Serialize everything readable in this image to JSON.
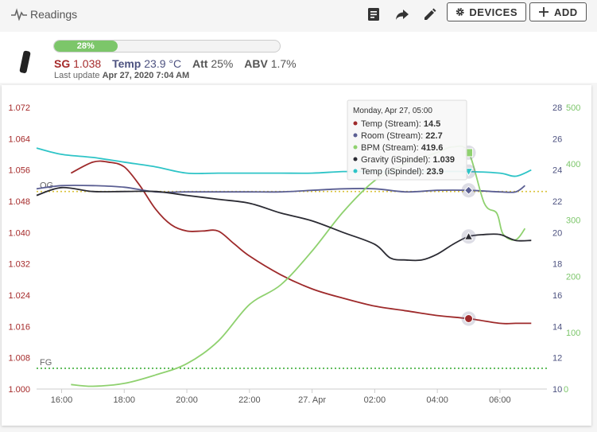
{
  "app": {
    "title": "Readings"
  },
  "toolbar": {
    "notes_icon": "notes-icon",
    "share_icon": "share-icon",
    "edit_icon": "edit-icon",
    "devices_label": "DEVICES",
    "add_label": "ADD"
  },
  "summary": {
    "progress_percent": 28,
    "progress_label": "28%",
    "sg_label": "SG",
    "sg_value": "1.038",
    "temp_label": "Temp",
    "temp_value": "23.9 °C",
    "att_label": "Att",
    "att_value": "25%",
    "abv_label": "ABV",
    "abv_value": "1.7%",
    "last_update_label": "Last update",
    "last_update_value": "Apr 27, 2020 7:04 AM"
  },
  "colors": {
    "sg": "#a52a2a",
    "temp_label": "#4d5280",
    "progress": "#7cc66a",
    "temp_stream": "#9e2a2b",
    "room": "#5b5f93",
    "bpm": "#8fd16f",
    "gravity": "#2b2b33",
    "temp_ispindel": "#2ec4c7"
  },
  "chart_data": {
    "type": "line",
    "x_tick_labels": [
      "16:00",
      "18:00",
      "20:00",
      "22:00",
      "27. Apr",
      "02:00",
      "04:00",
      "06:00"
    ],
    "x": [
      0,
      2,
      4,
      6,
      8,
      10,
      12,
      14
    ],
    "xlim": [
      -0.8,
      15.5
    ],
    "axes": {
      "gravity": {
        "range": [
          1.0,
          1.072
        ],
        "ticks": [
          "1.000",
          "1.008",
          "1.016",
          "1.024",
          "1.032",
          "1.040",
          "1.048",
          "1.056",
          "1.064",
          "1.072"
        ],
        "side": "left"
      },
      "temp": {
        "range": [
          10,
          28
        ],
        "ticks": [
          "10",
          "12",
          "14",
          "16",
          "18",
          "20",
          "22",
          "24",
          "26",
          "28"
        ],
        "side": "right"
      },
      "bpm": {
        "range": [
          0,
          500
        ],
        "ticks": [
          "0",
          "100",
          "200",
          "300",
          "400",
          "500"
        ],
        "side": "right"
      }
    },
    "reference_lines": [
      {
        "label": "OG",
        "value": 1.0505,
        "color": "#d9c23a"
      },
      {
        "label": "FG",
        "value": 1.0053,
        "color": "#3fae3a"
      }
    ],
    "series": [
      {
        "name": "Temp (Stream)",
        "axis": "temp",
        "color": "#9e2a2b",
        "x": [
          0.3,
          1.0,
          1.5,
          2.0,
          2.5,
          3.0,
          3.5,
          4.0,
          4.5,
          5.0,
          5.5,
          6.0,
          7.0,
          8.0,
          9.0,
          10.0,
          11.0,
          12.0,
          13.0,
          14.0,
          14.5,
          15.0
        ],
        "values": [
          23.8,
          24.5,
          24.5,
          24.2,
          23.0,
          21.5,
          20.5,
          20.1,
          20.1,
          20.1,
          19.3,
          18.5,
          17.3,
          16.4,
          15.8,
          15.3,
          15.0,
          14.7,
          14.5,
          14.2,
          14.2,
          14.2
        ]
      },
      {
        "name": "Room (Stream)",
        "axis": "temp",
        "color": "#5b5f93",
        "x": [
          -0.8,
          0,
          1,
          2,
          3,
          4,
          5,
          6,
          7,
          8,
          9,
          10,
          11,
          12,
          13,
          14,
          14.5,
          14.8
        ],
        "values": [
          22.8,
          23.0,
          23.0,
          22.9,
          22.6,
          22.6,
          22.6,
          22.6,
          22.6,
          22.7,
          22.8,
          22.8,
          22.6,
          22.7,
          22.7,
          22.6,
          22.6,
          23.0
        ]
      },
      {
        "name": "BPM (Stream)",
        "axis": "bpm",
        "color": "#8fd16f",
        "x": [
          0.3,
          1.0,
          2.0,
          3.0,
          4.0,
          5.0,
          6.0,
          7.0,
          8.0,
          9.0,
          10.0,
          11.0,
          12.0,
          12.5,
          13.0,
          13.5,
          13.9,
          14.1,
          14.5,
          14.8
        ],
        "values": [
          8,
          5,
          10,
          25,
          45,
          85,
          150,
          185,
          245,
          315,
          370,
          400,
          420,
          430,
          420,
          330,
          312,
          275,
          265,
          285
        ]
      },
      {
        "name": "Gravity (iSpindel)",
        "axis": "gravity",
        "color": "#2b2b33",
        "x": [
          -0.8,
          0,
          1,
          2,
          3,
          4,
          5,
          6,
          7,
          8,
          9,
          10,
          10.5,
          11,
          11.5,
          12,
          12.5,
          13.0,
          13.5,
          14.0,
          14.5,
          15.0
        ],
        "values": [
          1.0495,
          1.0515,
          1.0505,
          1.0505,
          1.0505,
          1.0495,
          1.0485,
          1.0475,
          1.045,
          1.043,
          1.04,
          1.037,
          1.0335,
          1.033,
          1.033,
          1.0345,
          1.037,
          1.039,
          1.0395,
          1.0395,
          1.038,
          1.038
        ]
      },
      {
        "name": "Temp (iSpindel)",
        "axis": "temp",
        "color": "#2ec4c7",
        "x": [
          -0.8,
          0,
          1,
          2,
          3,
          4,
          5,
          6,
          7,
          8,
          9,
          10,
          11,
          12,
          13,
          14,
          14.5,
          15.0
        ],
        "values": [
          25.4,
          25.0,
          24.8,
          24.5,
          24.2,
          23.8,
          23.8,
          23.8,
          23.8,
          23.8,
          23.9,
          23.9,
          23.9,
          23.9,
          23.9,
          23.8,
          23.6,
          24.0
        ]
      }
    ],
    "tooltip": {
      "title": "Monday, Apr 27, 05:00",
      "rows": [
        {
          "name": "Temp (Stream)",
          "value": "14.5"
        },
        {
          "name": "Room (Stream)",
          "value": "22.7"
        },
        {
          "name": "BPM (Stream)",
          "value": "419.6"
        },
        {
          "name": "Gravity (iSpindel)",
          "value": "1.039"
        },
        {
          "name": "Temp (iSpindel)",
          "value": "23.9"
        }
      ],
      "x": 13
    },
    "grid": false,
    "legend": "none"
  }
}
